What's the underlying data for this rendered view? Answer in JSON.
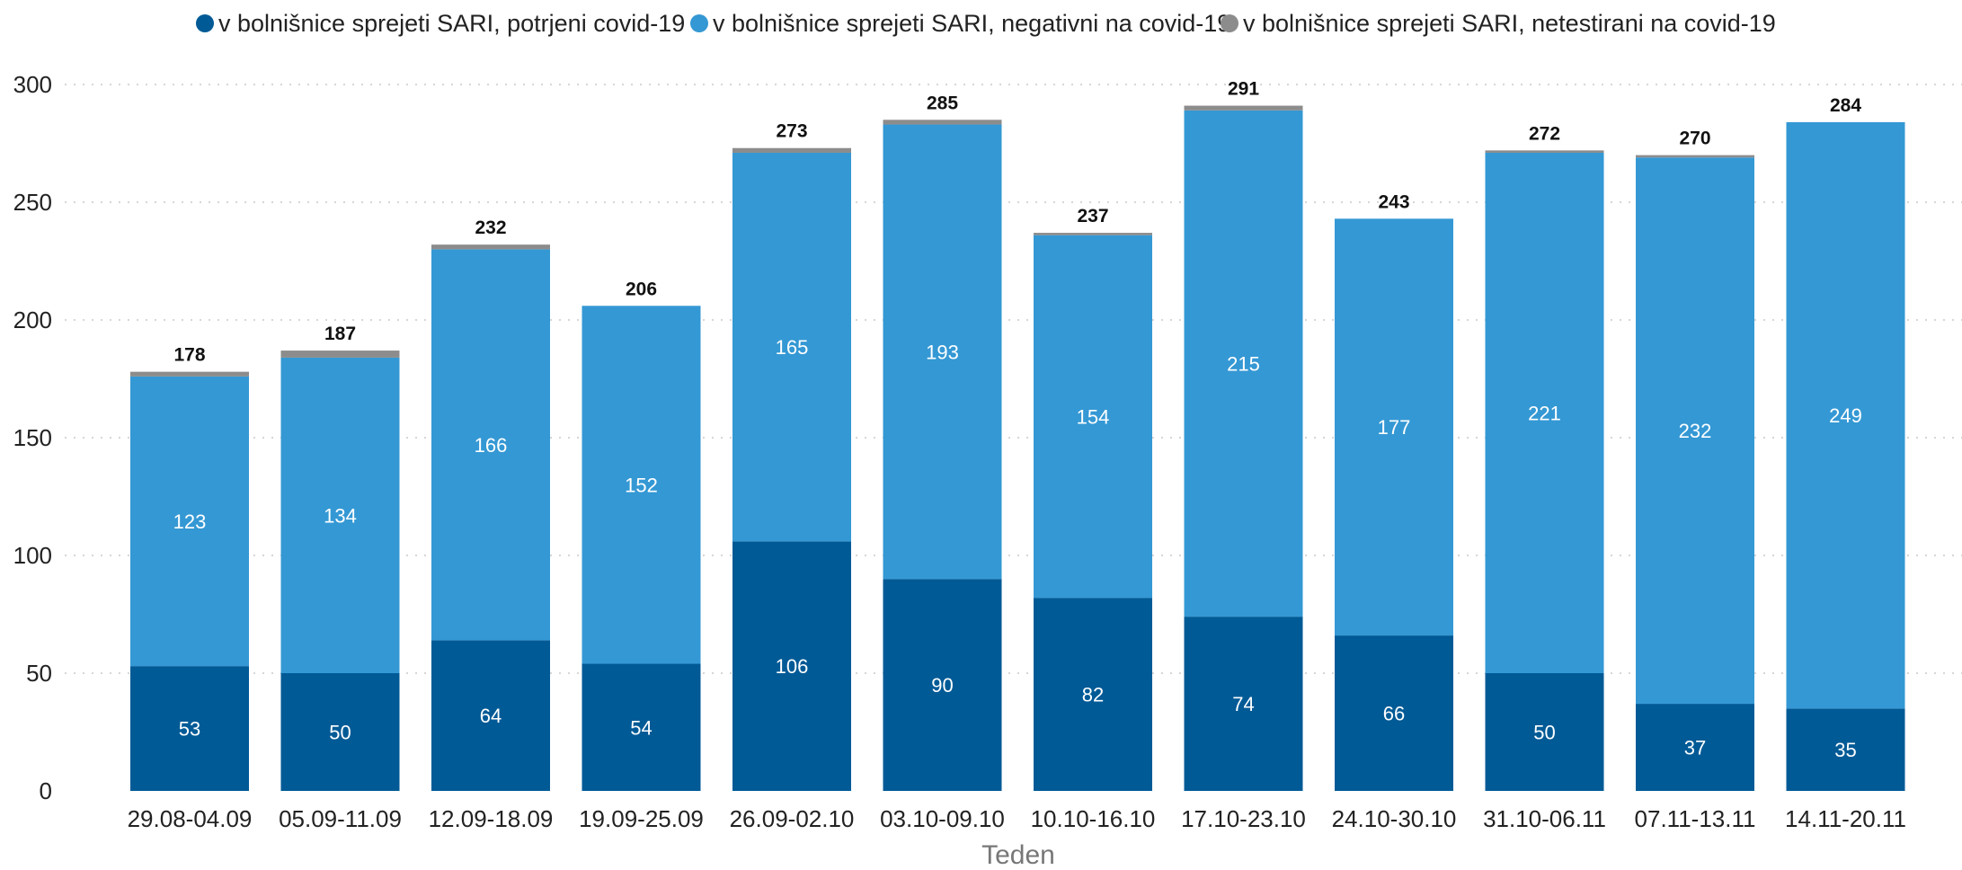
{
  "chart_data": {
    "type": "bar",
    "stacked": true,
    "title": "",
    "xlabel": "Teden",
    "ylabel": "",
    "ylim": [
      0,
      300
    ],
    "yticks": [
      0,
      50,
      100,
      150,
      200,
      250,
      300
    ],
    "grid": true,
    "legend_position": "top",
    "categories": [
      "29.08-04.09",
      "05.09-11.09",
      "12.09-18.09",
      "19.09-25.09",
      "26.09-02.10",
      "03.10-09.10",
      "10.10-16.10",
      "17.10-23.10",
      "24.10-30.10",
      "31.10-06.11",
      "07.11-13.11",
      "14.11-20.11"
    ],
    "series": [
      {
        "name": "v bolnišnice sprejeti SARI, potrjeni covid-19",
        "color": "#005a96",
        "values": [
          53,
          50,
          64,
          54,
          106,
          90,
          82,
          74,
          66,
          50,
          37,
          35
        ]
      },
      {
        "name": "v bolnišnice sprejeti SARI, negativni na covid-19",
        "color": "#3498d4",
        "values": [
          123,
          134,
          166,
          152,
          165,
          193,
          154,
          215,
          177,
          221,
          232,
          249
        ]
      },
      {
        "name": "v bolnišnice sprejeti SARI, netestirani na covid-19",
        "color": "#8c8c8c",
        "values": [
          2,
          3,
          2,
          0,
          2,
          2,
          1,
          2,
          0,
          1,
          1,
          0
        ]
      }
    ],
    "totals": [
      178,
      187,
      232,
      206,
      273,
      285,
      237,
      291,
      243,
      272,
      270,
      284
    ]
  }
}
